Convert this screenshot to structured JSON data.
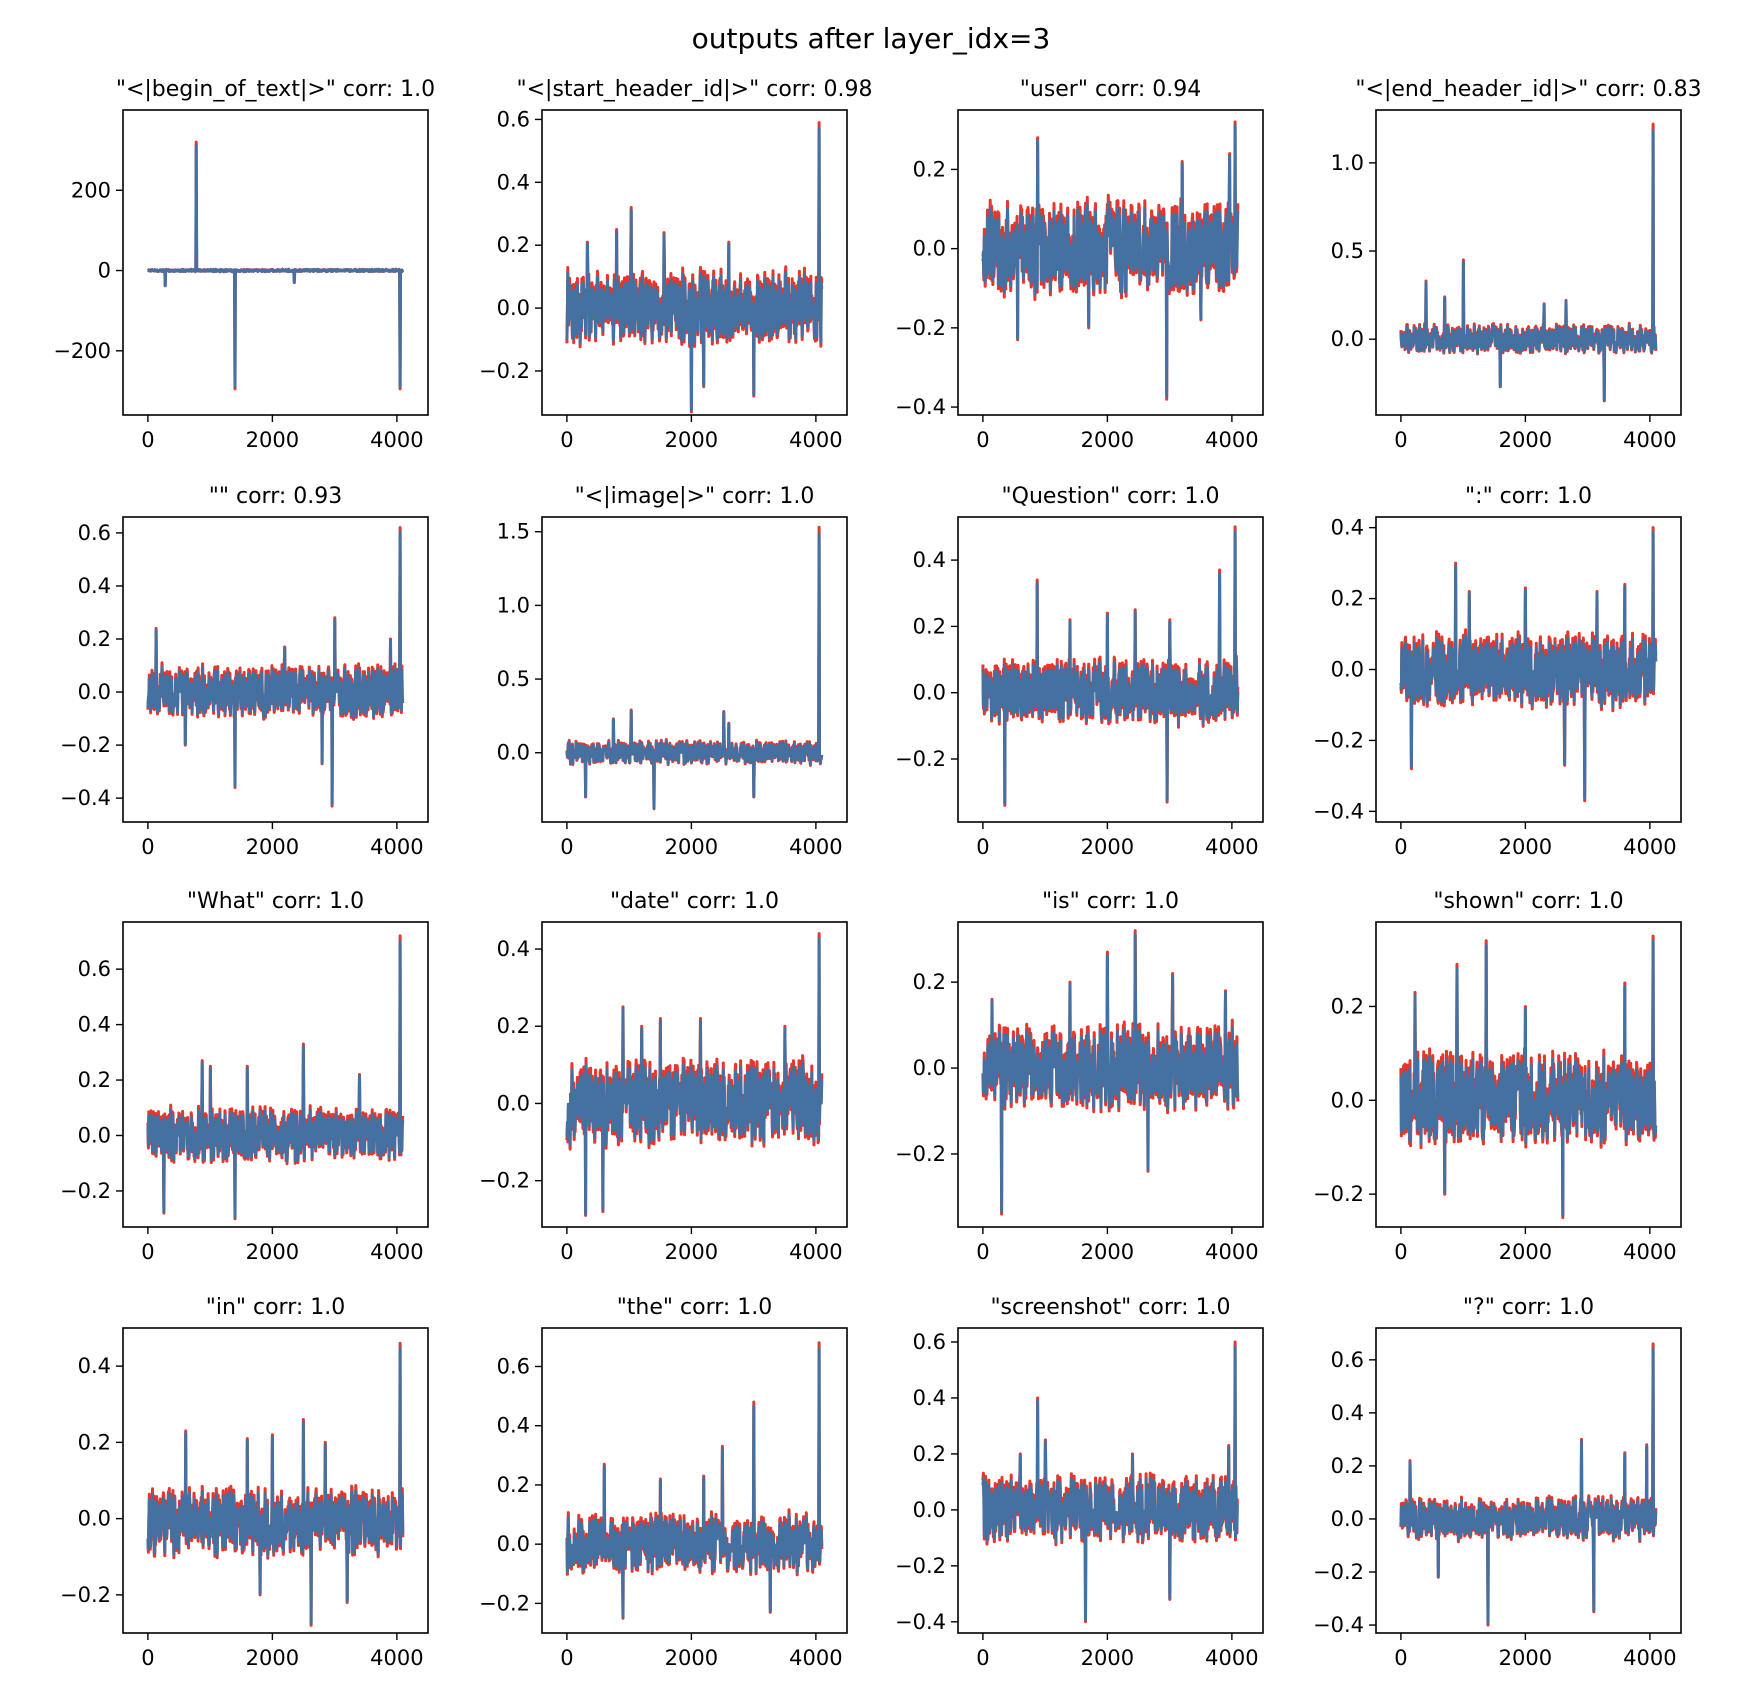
{
  "figure_title": "outputs after layer_idx=3",
  "colors": {
    "series_red": "#e8362a",
    "series_blue": "#4470a2"
  },
  "chart_data": {
    "type": "line",
    "title": "outputs after layer_idx=3",
    "xlim": [
      -400,
      4500
    ],
    "xticks": [
      0,
      2000,
      4000
    ],
    "x_tick_labels": [
      "0",
      "2000",
      "4000"
    ],
    "n_points": 4096,
    "series_names": [
      "red",
      "blue"
    ],
    "subplots": [
      {
        "title": "\"<|begin_of_text|>\" corr: 1.0",
        "ylim": [
          -360,
          400
        ],
        "yticks": [
          -200,
          0,
          200
        ],
        "y_tick_labels": [
          "−200",
          "0",
          "200"
        ],
        "noise": [
          -3,
          3
        ],
        "spikes": [
          [
            780,
            320
          ],
          [
            1400,
            -295
          ],
          [
            4050,
            -295
          ],
          [
            280,
            -38
          ],
          [
            2350,
            -30
          ]
        ]
      },
      {
        "title": "\"<|start_header_id|>\" corr: 0.98",
        "ylim": [
          -0.34,
          0.63
        ],
        "yticks": [
          -0.2,
          0.0,
          0.2,
          0.4,
          0.6
        ],
        "y_tick_labels": [
          "−0.2",
          "0.0",
          "0.2",
          "0.4",
          "0.6"
        ],
        "noise": [
          -0.12,
          0.12
        ],
        "spikes": [
          [
            4050,
            0.59
          ],
          [
            1030,
            0.32
          ],
          [
            2000,
            -0.33
          ],
          [
            800,
            0.25
          ],
          [
            2600,
            0.21
          ],
          [
            1560,
            0.24
          ],
          [
            330,
            0.21
          ],
          [
            3000,
            -0.28
          ],
          [
            2200,
            -0.25
          ]
        ]
      },
      {
        "title": "\"user\" corr: 0.94",
        "ylim": [
          -0.42,
          0.35
        ],
        "yticks": [
          -0.4,
          -0.2,
          0.0,
          0.2
        ],
        "y_tick_labels": [
          "−0.4",
          "−0.2",
          "0.0",
          "0.2"
        ],
        "noise": [
          -0.12,
          0.12
        ],
        "spikes": [
          [
            4050,
            0.32
          ],
          [
            2950,
            -0.38
          ],
          [
            880,
            0.28
          ],
          [
            3960,
            0.24
          ],
          [
            560,
            -0.23
          ],
          [
            1700,
            -0.2
          ],
          [
            3200,
            0.22
          ],
          [
            3500,
            -0.18
          ]
        ]
      },
      {
        "title": "\"<|end_header_id|>\" corr: 0.83",
        "ylim": [
          -0.43,
          1.3
        ],
        "yticks": [
          0.0,
          0.5,
          1.0
        ],
        "y_tick_labels": [
          "0.0",
          "0.5",
          "1.0"
        ],
        "noise": [
          -0.08,
          0.08
        ],
        "spikes": [
          [
            4050,
            1.22
          ],
          [
            1000,
            0.45
          ],
          [
            400,
            0.33
          ],
          [
            3270,
            -0.35
          ],
          [
            1600,
            -0.27
          ],
          [
            2300,
            0.2
          ],
          [
            700,
            0.24
          ],
          [
            2650,
            0.22
          ]
        ]
      },
      {
        "title": "\"\" corr: 0.93",
        "ylim": [
          -0.49,
          0.66
        ],
        "yticks": [
          -0.4,
          -0.2,
          0.0,
          0.2,
          0.4,
          0.6
        ],
        "y_tick_labels": [
          "−0.4",
          "−0.2",
          "0.0",
          "0.2",
          "0.4",
          "0.6"
        ],
        "noise": [
          -0.1,
          0.1
        ],
        "spikes": [
          [
            4050,
            0.62
          ],
          [
            2960,
            -0.43
          ],
          [
            1400,
            -0.36
          ],
          [
            3000,
            0.28
          ],
          [
            130,
            0.24
          ],
          [
            3900,
            0.2
          ],
          [
            2800,
            -0.27
          ],
          [
            600,
            -0.2
          ],
          [
            2200,
            0.17
          ]
        ]
      },
      {
        "title": "\"<|image|>\" corr: 1.0",
        "ylim": [
          -0.47,
          1.6
        ],
        "yticks": [
          0.0,
          0.5,
          1.0,
          1.5
        ],
        "y_tick_labels": [
          "0.0",
          "0.5",
          "1.0",
          "1.5"
        ],
        "noise": [
          -0.08,
          0.08
        ],
        "spikes": [
          [
            4050,
            1.53
          ],
          [
            1030,
            0.29
          ],
          [
            2520,
            0.28
          ],
          [
            1400,
            -0.38
          ],
          [
            750,
            0.23
          ],
          [
            2600,
            0.2
          ],
          [
            300,
            -0.3
          ],
          [
            3000,
            -0.3
          ]
        ]
      },
      {
        "title": "\"Question\" corr: 1.0",
        "ylim": [
          -0.39,
          0.53
        ],
        "yticks": [
          -0.2,
          0.0,
          0.2,
          0.4
        ],
        "y_tick_labels": [
          "−0.2",
          "0.0",
          "0.2",
          "0.4"
        ],
        "noise": [
          -0.1,
          0.1
        ],
        "spikes": [
          [
            4050,
            0.5
          ],
          [
            3800,
            0.37
          ],
          [
            870,
            0.34
          ],
          [
            2960,
            -0.33
          ],
          [
            350,
            -0.34
          ],
          [
            2450,
            0.25
          ],
          [
            1400,
            0.22
          ],
          [
            2000,
            0.24
          ],
          [
            3000,
            0.22
          ]
        ]
      },
      {
        "title": "\":\" corr: 1.0",
        "ylim": [
          -0.43,
          0.43
        ],
        "yticks": [
          -0.4,
          -0.2,
          0.0,
          0.2,
          0.4
        ],
        "y_tick_labels": [
          "−0.4",
          "−0.2",
          "0.0",
          "0.2",
          "0.4"
        ],
        "noise": [
          -0.11,
          0.1
        ],
        "spikes": [
          [
            4050,
            0.4
          ],
          [
            2950,
            -0.37
          ],
          [
            880,
            0.3
          ],
          [
            2630,
            -0.27
          ],
          [
            3600,
            0.24
          ],
          [
            170,
            -0.28
          ],
          [
            2000,
            0.23
          ],
          [
            1100,
            0.22
          ],
          [
            3150,
            0.22
          ]
        ]
      },
      {
        "title": "\"What\" corr: 1.0",
        "ylim": [
          -0.33,
          0.77
        ],
        "yticks": [
          -0.2,
          0.0,
          0.2,
          0.4,
          0.6
        ],
        "y_tick_labels": [
          "−0.2",
          "0.0",
          "0.2",
          "0.4",
          "0.6"
        ],
        "noise": [
          -0.1,
          0.1
        ],
        "spikes": [
          [
            4050,
            0.72
          ],
          [
            2500,
            0.33
          ],
          [
            1400,
            -0.3
          ],
          [
            870,
            0.27
          ],
          [
            260,
            -0.28
          ],
          [
            1600,
            0.25
          ],
          [
            3400,
            0.22
          ],
          [
            1000,
            0.25
          ]
        ]
      },
      {
        "title": "\"date\" corr: 1.0",
        "ylim": [
          -0.32,
          0.47
        ],
        "yticks": [
          -0.2,
          0.0,
          0.2,
          0.4
        ],
        "y_tick_labels": [
          "−0.2",
          "0.0",
          "0.2",
          "0.4"
        ],
        "noise": [
          -0.11,
          0.11
        ],
        "spikes": [
          [
            4050,
            0.44
          ],
          [
            900,
            0.25
          ],
          [
            300,
            -0.29
          ],
          [
            580,
            -0.28
          ],
          [
            2150,
            0.22
          ],
          [
            1500,
            0.22
          ],
          [
            3500,
            0.2
          ],
          [
            1200,
            0.2
          ]
        ]
      },
      {
        "title": "\"is\" corr: 1.0",
        "ylim": [
          -0.37,
          0.34
        ],
        "yticks": [
          -0.2,
          0.0,
          0.2
        ],
        "y_tick_labels": [
          "−0.2",
          "0.0",
          "0.2"
        ],
        "noise": [
          -0.1,
          0.1
        ],
        "spikes": [
          [
            2450,
            0.32
          ],
          [
            300,
            -0.34
          ],
          [
            2000,
            0.27
          ],
          [
            3050,
            0.22
          ],
          [
            3900,
            0.18
          ],
          [
            1400,
            0.2
          ],
          [
            2650,
            -0.24
          ],
          [
            150,
            0.16
          ]
        ]
      },
      {
        "title": "\"shown\" corr: 1.0",
        "ylim": [
          -0.27,
          0.38
        ],
        "yticks": [
          -0.2,
          0.0,
          0.2
        ],
        "y_tick_labels": [
          "−0.2",
          "0.0",
          "0.2"
        ],
        "noise": [
          -0.1,
          0.1
        ],
        "spikes": [
          [
            4050,
            0.35
          ],
          [
            1370,
            0.34
          ],
          [
            900,
            0.29
          ],
          [
            230,
            0.23
          ],
          [
            3600,
            0.25
          ],
          [
            2000,
            0.2
          ],
          [
            2600,
            -0.25
          ],
          [
            700,
            -0.2
          ]
        ]
      },
      {
        "title": "\"in\" corr: 1.0",
        "ylim": [
          -0.3,
          0.5
        ],
        "yticks": [
          -0.2,
          0.0,
          0.2,
          0.4
        ],
        "y_tick_labels": [
          "−0.2",
          "0.0",
          "0.2",
          "0.4"
        ],
        "noise": [
          -0.1,
          0.08
        ],
        "spikes": [
          [
            4050,
            0.46
          ],
          [
            2500,
            0.26
          ],
          [
            610,
            0.23
          ],
          [
            2620,
            -0.28
          ],
          [
            2000,
            0.22
          ],
          [
            2850,
            0.2
          ],
          [
            3200,
            -0.22
          ],
          [
            1600,
            0.21
          ],
          [
            1800,
            -0.2
          ]
        ]
      },
      {
        "title": "\"the\" corr: 1.0",
        "ylim": [
          -0.3,
          0.73
        ],
        "yticks": [
          -0.2,
          0.0,
          0.2,
          0.4,
          0.6
        ],
        "y_tick_labels": [
          "−0.2",
          "0.0",
          "0.2",
          "0.4",
          "0.6"
        ],
        "noise": [
          -0.1,
          0.1
        ],
        "spikes": [
          [
            4050,
            0.68
          ],
          [
            3000,
            0.48
          ],
          [
            2500,
            0.33
          ],
          [
            2200,
            0.23
          ],
          [
            600,
            0.27
          ],
          [
            900,
            -0.25
          ],
          [
            3270,
            -0.23
          ],
          [
            1500,
            0.22
          ]
        ]
      },
      {
        "title": "\"screenshot\" corr: 1.0",
        "ylim": [
          -0.44,
          0.65
        ],
        "yticks": [
          -0.4,
          -0.2,
          0.0,
          0.2,
          0.4,
          0.6
        ],
        "y_tick_labels": [
          "−0.4",
          "−0.2",
          "0.0",
          "0.2",
          "0.4",
          "0.6"
        ],
        "noise": [
          -0.12,
          0.12
        ],
        "spikes": [
          [
            4050,
            0.6
          ],
          [
            880,
            0.4
          ],
          [
            1650,
            -0.4
          ],
          [
            3950,
            0.23
          ],
          [
            3000,
            -0.32
          ],
          [
            1000,
            0.25
          ],
          [
            600,
            0.2
          ],
          [
            2400,
            0.2
          ]
        ]
      },
      {
        "title": "\"?\" corr: 1.0",
        "ylim": [
          -0.43,
          0.72
        ],
        "yticks": [
          -0.4,
          -0.2,
          0.0,
          0.2,
          0.4,
          0.6
        ],
        "y_tick_labels": [
          "−0.4",
          "−0.2",
          "0.0",
          "0.2",
          "0.4",
          "0.6"
        ],
        "noise": [
          -0.08,
          0.08
        ],
        "spikes": [
          [
            4050,
            0.66
          ],
          [
            1400,
            -0.4
          ],
          [
            3100,
            -0.35
          ],
          [
            2900,
            0.3
          ],
          [
            3600,
            0.25
          ],
          [
            150,
            0.22
          ],
          [
            3950,
            0.28
          ],
          [
            600,
            -0.22
          ]
        ]
      }
    ]
  }
}
